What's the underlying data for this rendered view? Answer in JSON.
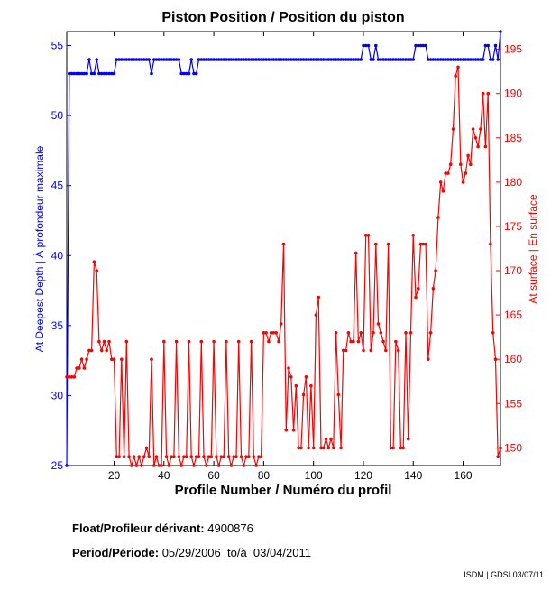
{
  "colors": {
    "left": "#0000ff",
    "right": "#ff0000",
    "axis": "#000000"
  },
  "chart_data": {
    "type": "line",
    "title": "Piston Position / Position du piston",
    "xlabel": "Profile Number / Numéro du profil",
    "ylabel_left": "At Deepest Depth | À profondeur maximale",
    "ylabel_right": "At surface | En surface",
    "xlim": [
      1,
      175
    ],
    "ylim_left": [
      25,
      56
    ],
    "ylim_right": [
      148,
      197
    ],
    "xticks": [
      "20",
      "40",
      "60",
      "80",
      "100",
      "120",
      "140",
      "160"
    ],
    "yticks_left": [
      "25",
      "30",
      "35",
      "40",
      "45",
      "50",
      "55"
    ],
    "yticks_right": [
      "150",
      "155",
      "160",
      "165",
      "170",
      "175",
      "180",
      "185",
      "190",
      "195"
    ],
    "series": [
      {
        "name": "At Deepest Depth",
        "axis": "left",
        "x": [
          1,
          2,
          3,
          4,
          5,
          6,
          7,
          8,
          9,
          10,
          11,
          12,
          13,
          14,
          15,
          16,
          17,
          18,
          19,
          20,
          21,
          22,
          23,
          24,
          25,
          26,
          27,
          28,
          29,
          30,
          31,
          32,
          33,
          34,
          35,
          36,
          37,
          38,
          39,
          40,
          41,
          42,
          43,
          44,
          45,
          46,
          47,
          48,
          49,
          50,
          51,
          52,
          53,
          54,
          55,
          56,
          57,
          58,
          59,
          60,
          61,
          62,
          63,
          64,
          65,
          66,
          67,
          68,
          69,
          70,
          71,
          72,
          73,
          74,
          75,
          76,
          77,
          78,
          79,
          80,
          81,
          82,
          83,
          84,
          85,
          86,
          87,
          88,
          89,
          90,
          91,
          92,
          93,
          94,
          95,
          96,
          97,
          98,
          99,
          100,
          101,
          102,
          103,
          104,
          105,
          106,
          107,
          108,
          109,
          110,
          111,
          112,
          113,
          114,
          115,
          116,
          117,
          118,
          119,
          120,
          121,
          122,
          123,
          124,
          125,
          126,
          127,
          128,
          129,
          130,
          131,
          132,
          133,
          134,
          135,
          136,
          137,
          138,
          139,
          140,
          141,
          142,
          143,
          144,
          145,
          146,
          147,
          148,
          149,
          150,
          151,
          152,
          153,
          154,
          155,
          156,
          157,
          158,
          159,
          160,
          161,
          162,
          163,
          164,
          165,
          166,
          167,
          168,
          169,
          170,
          171,
          172,
          173,
          174,
          175
        ],
        "values": [
          25,
          53,
          53,
          53,
          53,
          53,
          53,
          53,
          53,
          54,
          53,
          53,
          54,
          53,
          53,
          53,
          53,
          53,
          53,
          53,
          54,
          54,
          54,
          54,
          54,
          54,
          54,
          54,
          54,
          54,
          54,
          54,
          54,
          54,
          53,
          54,
          54,
          54,
          54,
          54,
          54,
          54,
          54,
          54,
          54,
          54,
          53,
          53,
          53,
          53,
          54,
          53,
          53,
          54,
          54,
          54,
          54,
          54,
          54,
          54,
          54,
          54,
          54,
          54,
          54,
          54,
          54,
          54,
          54,
          54,
          54,
          54,
          54,
          54,
          54,
          54,
          54,
          54,
          54,
          54,
          54,
          54,
          54,
          54,
          54,
          54,
          54,
          54,
          54,
          54,
          54,
          54,
          54,
          54,
          54,
          54,
          54,
          54,
          54,
          54,
          54,
          54,
          54,
          54,
          54,
          54,
          54,
          54,
          54,
          54,
          54,
          54,
          54,
          54,
          54,
          54,
          54,
          54,
          54,
          55,
          55,
          55,
          54,
          54,
          55,
          54,
          54,
          54,
          54,
          54,
          54,
          54,
          54,
          54,
          54,
          54,
          54,
          54,
          54,
          54,
          55,
          55,
          55,
          55,
          55,
          54,
          54,
          54,
          54,
          54,
          54,
          54,
          54,
          54,
          54,
          54,
          54,
          54,
          54,
          54,
          54,
          54,
          54,
          54,
          54,
          54,
          54,
          54,
          55,
          55,
          54,
          54,
          55,
          54,
          56
        ]
      },
      {
        "name": "At surface",
        "axis": "right",
        "x": [
          1,
          2,
          3,
          4,
          5,
          6,
          7,
          8,
          9,
          10,
          11,
          12,
          13,
          14,
          15,
          16,
          17,
          18,
          19,
          20,
          21,
          22,
          23,
          24,
          25,
          26,
          27,
          28,
          29,
          30,
          31,
          32,
          33,
          34,
          35,
          36,
          37,
          38,
          39,
          40,
          41,
          42,
          43,
          44,
          45,
          46,
          47,
          48,
          49,
          50,
          51,
          52,
          53,
          54,
          55,
          56,
          57,
          58,
          59,
          60,
          61,
          62,
          63,
          64,
          65,
          66,
          67,
          68,
          69,
          70,
          71,
          72,
          73,
          74,
          75,
          76,
          77,
          78,
          79,
          80,
          81,
          82,
          83,
          84,
          85,
          86,
          87,
          88,
          89,
          90,
          91,
          92,
          93,
          94,
          95,
          96,
          97,
          98,
          99,
          100,
          101,
          102,
          103,
          104,
          105,
          106,
          107,
          108,
          109,
          110,
          111,
          112,
          113,
          114,
          115,
          116,
          117,
          118,
          119,
          120,
          121,
          122,
          123,
          124,
          125,
          126,
          127,
          128,
          129,
          130,
          131,
          132,
          133,
          134,
          135,
          136,
          137,
          138,
          139,
          140,
          141,
          142,
          143,
          144,
          145,
          146,
          147,
          148,
          149,
          150,
          151,
          152,
          153,
          154,
          155,
          156,
          157,
          158,
          159,
          160,
          161,
          162,
          163,
          164,
          165,
          166,
          167,
          168,
          169,
          170,
          171,
          172,
          173,
          174,
          175
        ],
        "values": [
          158,
          158,
          158,
          158,
          159,
          159,
          160,
          159,
          160,
          161,
          161,
          171,
          170,
          162,
          161,
          162,
          161,
          162,
          160,
          160,
          149,
          149,
          160,
          149,
          162,
          149,
          148,
          149,
          148,
          149,
          148,
          149,
          150,
          149,
          160,
          148,
          149,
          148,
          148,
          162,
          149,
          148,
          149,
          149,
          162,
          149,
          148,
          149,
          149,
          162,
          149,
          148,
          149,
          149,
          162,
          149,
          148,
          149,
          149,
          162,
          149,
          148,
          149,
          149,
          162,
          149,
          148,
          149,
          149,
          162,
          149,
          148,
          149,
          149,
          162,
          149,
          148,
          149,
          149,
          163,
          163,
          162,
          163,
          163,
          163,
          162,
          164,
          173,
          152,
          159,
          158,
          152,
          157,
          150,
          150,
          156,
          158,
          150,
          157,
          150,
          165,
          167,
          150,
          150,
          151,
          150,
          151,
          150,
          163,
          156,
          150,
          161,
          161,
          163,
          162,
          162,
          172,
          162,
          163,
          161,
          174,
          174,
          161,
          163,
          173,
          164,
          163,
          162,
          161,
          173,
          150,
          150,
          162,
          161,
          150,
          150,
          163,
          151,
          163,
          174,
          167,
          168,
          173,
          173,
          173,
          160,
          163,
          168,
          170,
          176,
          180,
          179,
          181,
          181,
          182,
          186,
          192,
          193,
          182,
          180,
          181,
          183,
          182,
          186,
          185,
          184,
          186,
          190,
          184,
          190,
          173,
          163,
          160,
          149,
          150
        ]
      }
    ]
  },
  "footer": {
    "float_label": "Float/Profileur dérivant:",
    "float_value": "4900876",
    "period_label": "Period/Période:",
    "period_value": "05/29/2006  to/à  03/04/2011",
    "credit": "ISDM | GDSI 03/07/11"
  }
}
